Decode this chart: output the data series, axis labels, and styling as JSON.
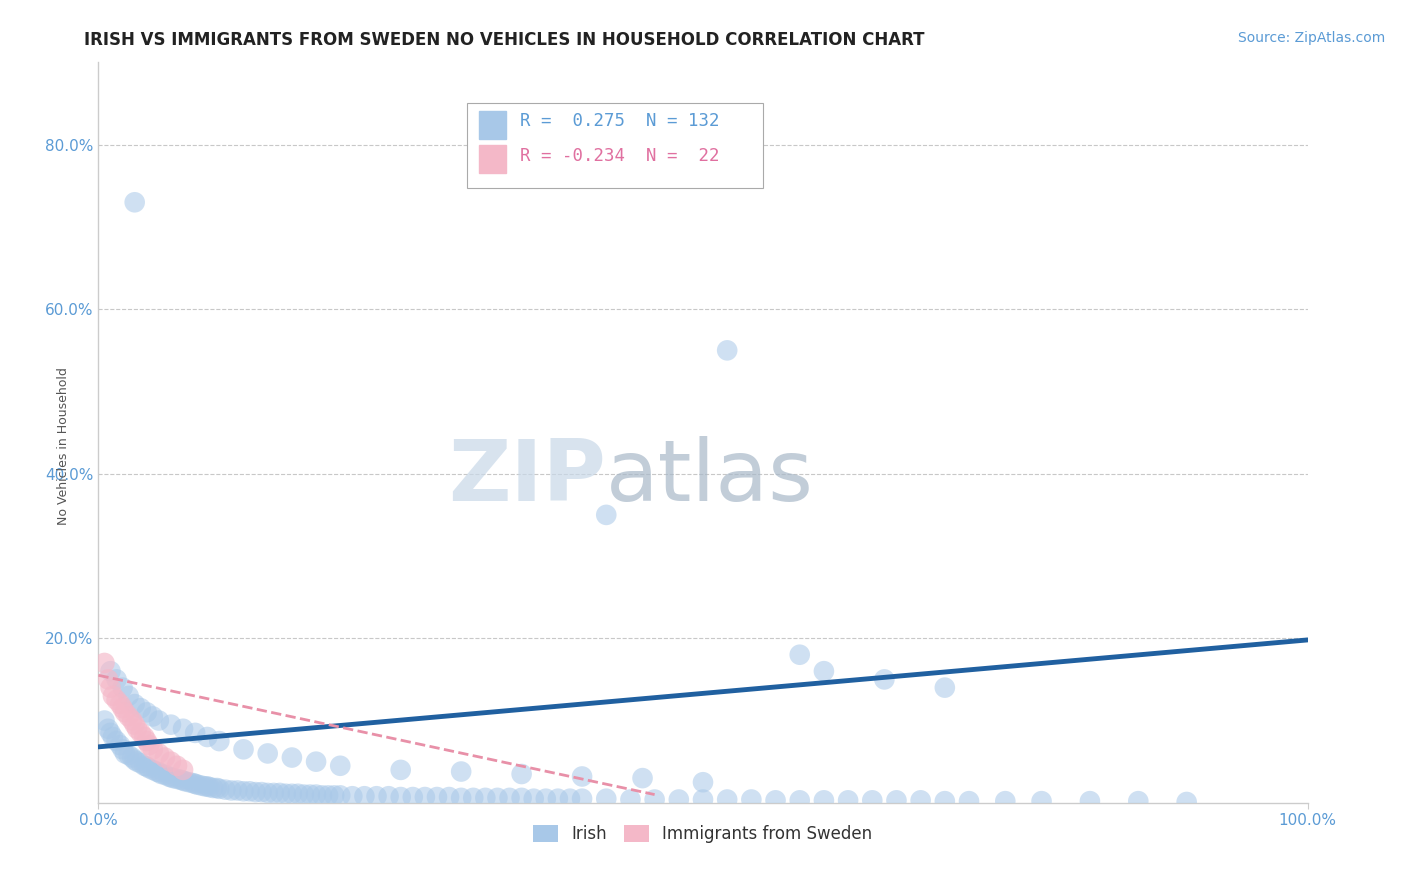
{
  "title": "IRISH VS IMMIGRANTS FROM SWEDEN NO VEHICLES IN HOUSEHOLD CORRELATION CHART",
  "source_text": "Source: ZipAtlas.com",
  "ylabel": "No Vehicles in Household",
  "xlim": [
    0.0,
    1.0
  ],
  "ylim": [
    0.0,
    0.9
  ],
  "xticks": [
    0.0,
    1.0
  ],
  "xtick_labels": [
    "0.0%",
    "100.0%"
  ],
  "yticks": [
    0.2,
    0.4,
    0.6,
    0.8
  ],
  "ytick_labels": [
    "20.0%",
    "40.0%",
    "60.0%",
    "80.0%"
  ],
  "legend_irish_R": "0.275",
  "legend_irish_N": "132",
  "legend_sweden_R": "-0.234",
  "legend_sweden_N": "22",
  "irish_color": "#a8c8e8",
  "swedish_color": "#f4b8c8",
  "irish_line_color": "#2060a0",
  "swedish_line_color": "#e890a8",
  "watermark_zip": "ZIP",
  "watermark_atlas": "atlas",
  "irish_scatter_x": [
    0.005,
    0.008,
    0.01,
    0.012,
    0.015,
    0.018,
    0.02,
    0.022,
    0.025,
    0.028,
    0.03,
    0.032,
    0.035,
    0.038,
    0.04,
    0.042,
    0.045,
    0.048,
    0.05,
    0.052,
    0.055,
    0.058,
    0.06,
    0.062,
    0.065,
    0.068,
    0.07,
    0.072,
    0.075,
    0.078,
    0.08,
    0.082,
    0.085,
    0.088,
    0.09,
    0.092,
    0.095,
    0.098,
    0.1,
    0.105,
    0.11,
    0.115,
    0.12,
    0.125,
    0.13,
    0.135,
    0.14,
    0.145,
    0.15,
    0.155,
    0.16,
    0.165,
    0.17,
    0.175,
    0.18,
    0.185,
    0.19,
    0.195,
    0.2,
    0.21,
    0.22,
    0.23,
    0.24,
    0.25,
    0.26,
    0.27,
    0.28,
    0.29,
    0.3,
    0.31,
    0.32,
    0.33,
    0.34,
    0.35,
    0.36,
    0.37,
    0.38,
    0.39,
    0.4,
    0.42,
    0.44,
    0.46,
    0.48,
    0.5,
    0.52,
    0.54,
    0.56,
    0.58,
    0.6,
    0.62,
    0.64,
    0.66,
    0.68,
    0.7,
    0.72,
    0.75,
    0.78,
    0.82,
    0.86,
    0.9,
    0.01,
    0.015,
    0.02,
    0.025,
    0.03,
    0.035,
    0.04,
    0.045,
    0.05,
    0.06,
    0.07,
    0.08,
    0.09,
    0.1,
    0.12,
    0.14,
    0.16,
    0.18,
    0.2,
    0.25,
    0.3,
    0.35,
    0.4,
    0.45,
    0.5,
    0.52,
    0.42,
    0.03,
    0.58,
    0.6,
    0.65,
    0.7
  ],
  "irish_scatter_y": [
    0.1,
    0.09,
    0.085,
    0.08,
    0.075,
    0.07,
    0.065,
    0.06,
    0.058,
    0.055,
    0.052,
    0.05,
    0.048,
    0.045,
    0.044,
    0.042,
    0.04,
    0.038,
    0.037,
    0.035,
    0.034,
    0.032,
    0.031,
    0.03,
    0.029,
    0.028,
    0.027,
    0.026,
    0.025,
    0.024,
    0.023,
    0.022,
    0.021,
    0.02,
    0.02,
    0.019,
    0.018,
    0.018,
    0.017,
    0.016,
    0.015,
    0.015,
    0.014,
    0.014,
    0.013,
    0.013,
    0.012,
    0.012,
    0.012,
    0.011,
    0.011,
    0.011,
    0.01,
    0.01,
    0.01,
    0.009,
    0.009,
    0.009,
    0.009,
    0.008,
    0.008,
    0.008,
    0.008,
    0.007,
    0.007,
    0.007,
    0.007,
    0.007,
    0.006,
    0.006,
    0.006,
    0.006,
    0.006,
    0.006,
    0.005,
    0.005,
    0.005,
    0.005,
    0.005,
    0.005,
    0.004,
    0.004,
    0.004,
    0.004,
    0.004,
    0.004,
    0.003,
    0.003,
    0.003,
    0.003,
    0.003,
    0.003,
    0.003,
    0.002,
    0.002,
    0.002,
    0.002,
    0.002,
    0.002,
    0.001,
    0.16,
    0.15,
    0.14,
    0.13,
    0.12,
    0.115,
    0.11,
    0.105,
    0.1,
    0.095,
    0.09,
    0.085,
    0.08,
    0.075,
    0.065,
    0.06,
    0.055,
    0.05,
    0.045,
    0.04,
    0.038,
    0.035,
    0.032,
    0.03,
    0.025,
    0.55,
    0.35,
    0.73,
    0.18,
    0.16,
    0.15,
    0.14
  ],
  "swedish_scatter_x": [
    0.005,
    0.008,
    0.01,
    0.012,
    0.015,
    0.018,
    0.02,
    0.022,
    0.025,
    0.028,
    0.03,
    0.032,
    0.035,
    0.038,
    0.04,
    0.042,
    0.045,
    0.05,
    0.055,
    0.06,
    0.065,
    0.07
  ],
  "swedish_scatter_y": [
    0.17,
    0.15,
    0.14,
    0.13,
    0.125,
    0.12,
    0.115,
    0.11,
    0.105,
    0.1,
    0.095,
    0.09,
    0.085,
    0.08,
    0.075,
    0.07,
    0.065,
    0.06,
    0.055,
    0.05,
    0.045,
    0.04
  ],
  "irish_trend_x": [
    0.0,
    1.0
  ],
  "irish_trend_y": [
    0.068,
    0.198
  ],
  "swedish_trend_x": [
    0.0,
    0.46
  ],
  "swedish_trend_y": [
    0.155,
    0.01
  ],
  "title_fontsize": 12,
  "axis_label_fontsize": 9,
  "tick_fontsize": 11,
  "source_fontsize": 10
}
